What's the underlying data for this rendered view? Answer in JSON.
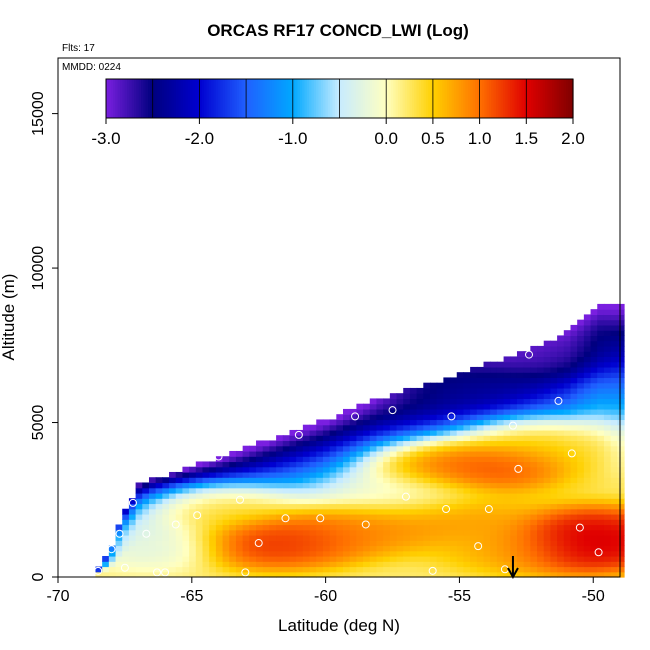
{
  "chart_data": {
    "type": "heatmap",
    "title": "ORCAS RF17 CONCD_LWI (Log)",
    "xlabel": "Latitude (deg N)",
    "ylabel": "Altitude (m)",
    "xlim": [
      -70,
      -49
    ],
    "ylim": [
      0,
      16800
    ],
    "x_ticks": [
      -70,
      -65,
      -60,
      -55,
      -50
    ],
    "x_tick_labels": [
      "-70",
      "-65",
      "-60",
      "-55",
      "-50"
    ],
    "y_ticks": [
      0,
      5000,
      10000,
      15000
    ],
    "y_tick_labels": [
      "0",
      "5000",
      "10000",
      "15000"
    ],
    "annotations": {
      "flights": "Flts: 17",
      "date": "MMDD: 0224"
    },
    "colorbar": {
      "min": -3.0,
      "max": 2.0,
      "boundaries": [
        -3.0,
        -2.5,
        -2.0,
        -1.5,
        -1.0,
        -0.5,
        0.0,
        0.5,
        1.0,
        1.5,
        2.0
      ],
      "tick_values": [
        -3.0,
        -2.0,
        -1.0,
        0.0,
        0.5,
        1.0,
        1.5,
        2.0
      ],
      "tick_labels": [
        "-3.0",
        "-2.0",
        "-1.0",
        "0.0",
        "0.5",
        "1.0",
        "1.5",
        "2.0"
      ],
      "tick_positions": [
        0.0,
        0.2,
        0.4,
        0.6,
        0.7,
        0.8,
        0.9,
        1.0
      ],
      "colors": [
        "#7a1fe0",
        "#00007f",
        "#0000d0",
        "#2060ff",
        "#00a8ff",
        "#c8ecff",
        "#ffffc0",
        "#ffd000",
        "#ff7000",
        "#e00000",
        "#800000"
      ]
    },
    "envelope": {
      "lat": [
        -68.6,
        -68.0,
        -67.5,
        -67.0,
        -66.5,
        -66.0,
        -65.0,
        -64.0,
        -63.0,
        -62.0,
        -61.0,
        -60.0,
        -59.0,
        -58.0,
        -57.0,
        -56.0,
        -55.0,
        -54.0,
        -53.0,
        -52.0,
        -51.0,
        -50.4,
        -49.8
      ],
      "top": [
        150,
        900,
        2100,
        2900,
        3100,
        3200,
        3500,
        3800,
        4100,
        4400,
        4700,
        5000,
        5350,
        5700,
        5950,
        6200,
        6500,
        6800,
        7100,
        7400,
        7800,
        8300,
        8700
      ]
    },
    "features": [
      {
        "lat": -62.0,
        "alt": 1100,
        "value": 1.6
      },
      {
        "lat": -60.5,
        "alt": 1300,
        "value": 1.2
      },
      {
        "lat": -58.0,
        "alt": 1600,
        "value": 1.0
      },
      {
        "lat": -55.0,
        "alt": 1900,
        "value": 0.9
      },
      {
        "lat": -53.5,
        "alt": 3600,
        "value": 1.5
      },
      {
        "lat": -55.5,
        "alt": 3600,
        "value": 1.3
      },
      {
        "lat": -52.0,
        "alt": 4300,
        "value": 0.7
      },
      {
        "lat": -50.0,
        "alt": 1500,
        "value": 1.8
      },
      {
        "lat": -50.3,
        "alt": 900,
        "value": 1.9
      },
      {
        "lat": -53.0,
        "alt": 900,
        "value": 0.8
      },
      {
        "lat": -64.0,
        "alt": 2200,
        "value": 0.6
      },
      {
        "lat": -52.5,
        "alt": 7300,
        "value": -2.8
      },
      {
        "lat": -55.0,
        "alt": 6300,
        "value": -2.3
      },
      {
        "lat": -66.5,
        "alt": 1100,
        "value": -0.4
      },
      {
        "lat": -57.0,
        "alt": 2700,
        "value": -0.1
      }
    ],
    "flight_points": {
      "lat": [
        -68.5,
        -68.0,
        -67.7,
        -67.2,
        -66.7,
        -66.3,
        -65.6,
        -64.0,
        -63.2,
        -62.5,
        -61.5,
        -60.2,
        -58.5,
        -57.0,
        -55.5,
        -54.3,
        -53.0,
        -52.4,
        -51.3,
        -50.8,
        -49.8,
        -67.5,
        -64.8,
        -61.0,
        -58.9,
        -57.5,
        -55.3,
        -53.9,
        -52.8,
        -50.5,
        -53.3,
        -56.0,
        -63.0,
        -66.0
      ],
      "alt": [
        200,
        900,
        1400,
        2400,
        1400,
        150,
        1700,
        3900,
        2500,
        1100,
        1900,
        1900,
        1700,
        2600,
        2200,
        1000,
        4900,
        7200,
        5700,
        4000,
        800,
        300,
        2000,
        4600,
        5200,
        5400,
        5200,
        2200,
        3500,
        1600,
        250,
        200,
        150,
        150
      ]
    },
    "marker": {
      "lat": -53.0,
      "direction": "down"
    }
  }
}
